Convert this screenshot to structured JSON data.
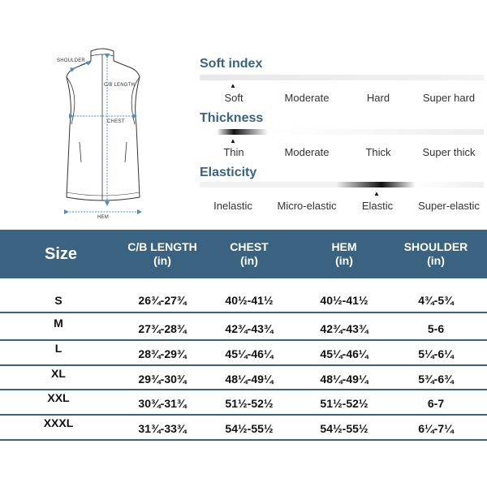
{
  "diagram": {
    "labels": {
      "shoulder": "SHOULDER",
      "cb_length": "C/B LENGTH",
      "chest": "CHEST",
      "hem": "HEM"
    }
  },
  "properties": [
    {
      "title": "Soft index",
      "options": [
        "Soft",
        "Moderate",
        "Hard",
        "Super hard"
      ],
      "selected": 0
    },
    {
      "title": "Thickness",
      "options": [
        "Thin",
        "Moderate",
        "Thick",
        "Super thick"
      ],
      "selected": 0
    },
    {
      "title": "Elasticity",
      "options": [
        "Inelastic",
        "Micro-elastic",
        "Elastic",
        "Super-elastic"
      ],
      "selected": 2
    }
  ],
  "table": {
    "headers": [
      {
        "line1": "Size",
        "line2": ""
      },
      {
        "line1": "C/B LENGTH",
        "line2": "(in)"
      },
      {
        "line1": "CHEST",
        "line2": "(in)"
      },
      {
        "line1": "HEM",
        "line2": "(in)"
      },
      {
        "line1": "SHOULDER",
        "line2": "(in)"
      }
    ],
    "rows": [
      [
        "S",
        "26¾-27¾",
        "40½-41½",
        "40½-41½",
        "4¾-5¾"
      ],
      [
        "M",
        "27¾-28¾",
        "42¾-43¾",
        "42¾-43¾",
        "5-6"
      ],
      [
        "L",
        "28¾-29¾",
        "45¼-46¼",
        "45¼-46¼",
        "5¼-6¼"
      ],
      [
        "XL",
        "29¾-30¾",
        "48¼-49¼",
        "48¼-49¼",
        "5¾-6¾"
      ],
      [
        "XXL",
        "30¾-31¾",
        "51½-52½",
        "51½-52½",
        "6-7"
      ],
      [
        "XXXL",
        "31¾-33¾",
        "54½-55½",
        "54½-55½",
        "6¼-7¼"
      ]
    ]
  },
  "colors": {
    "accent": "#3a6382",
    "marker": "#111111"
  }
}
